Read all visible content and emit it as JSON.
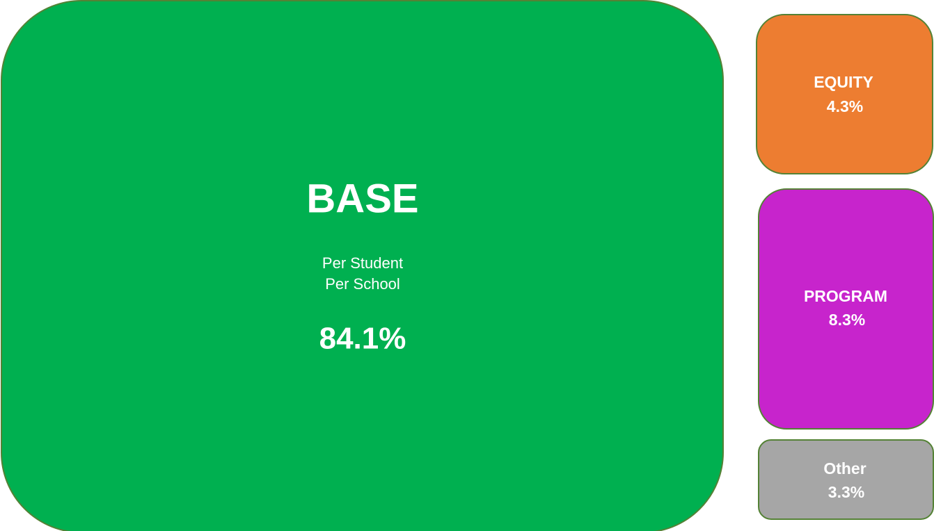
{
  "blocks": [
    {
      "title": "BASE",
      "lines": [
        "Per Student",
        "Per School"
      ],
      "share": "84.1%"
    },
    {
      "title": "EQUITY",
      "share": "4.3%"
    },
    {
      "title": "PROGRAM",
      "share": "8.3%"
    },
    {
      "title": "Other",
      "share": "3.3%"
    }
  ]
}
